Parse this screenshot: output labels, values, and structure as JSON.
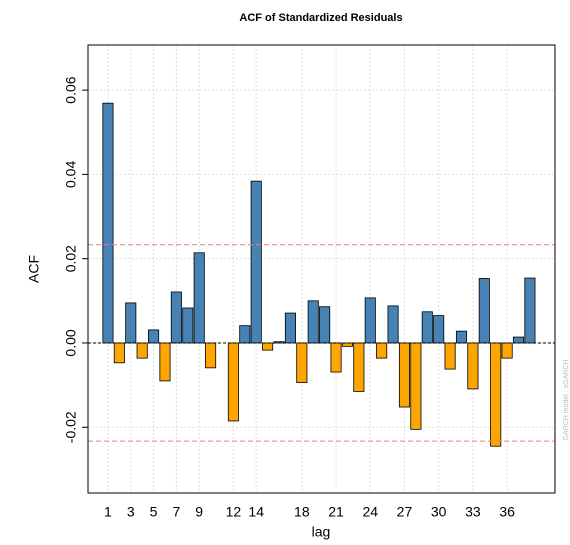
{
  "chart_data": {
    "type": "bar",
    "title": "ACF of Standardized Residuals",
    "x_label": "lag",
    "y_label": "ACF",
    "annotation": "GARCH model : sGARCH",
    "x": [
      1,
      2,
      3,
      4,
      5,
      6,
      7,
      8,
      9,
      10,
      11,
      12,
      13,
      14,
      15,
      16,
      17,
      18,
      19,
      20,
      21,
      22,
      23,
      24,
      25,
      26,
      27,
      28,
      29,
      30,
      31,
      32,
      33,
      34,
      35,
      36,
      37,
      38
    ],
    "values": [
      0.0569,
      -0.0047,
      0.0095,
      -0.0036,
      0.0031,
      -0.009,
      0.0121,
      0.0083,
      0.0214,
      -0.0059,
      0,
      -0.0185,
      0.0041,
      0.0384,
      -0.0017,
      0.0003,
      0.0071,
      -0.0094,
      0.01,
      0.0086,
      -0.0069,
      -0.0008,
      -0.0115,
      0.0107,
      -0.0036,
      0.0088,
      -0.0152,
      -0.0205,
      0.0074,
      0.0065,
      -0.0062,
      0.0028,
      -0.0109,
      0.0153,
      -0.0245,
      -0.0036,
      0.0014,
      0.0154
    ],
    "positive_color": "#4682b4",
    "negative_color": "#ffa500",
    "confidence_bounds": [
      0.0233,
      -0.0233
    ],
    "confidence_color": "#f08070",
    "xlim": [
      -0.75,
      40.2
    ],
    "ylim": [
      -0.0356,
      0.0707
    ],
    "xticks": [
      1,
      3,
      5,
      7,
      9,
      12,
      14,
      18,
      21,
      24,
      27,
      30,
      33,
      36
    ],
    "yticks": [
      {
        "value": -0.02,
        "label": "-0.02"
      },
      {
        "value": 0,
        "label": "0.00"
      },
      {
        "value": 0.02,
        "label": "0.02"
      },
      {
        "value": 0.04,
        "label": "0.04"
      },
      {
        "value": 0.06,
        "label": "0.06"
      }
    ],
    "grid": true
  }
}
